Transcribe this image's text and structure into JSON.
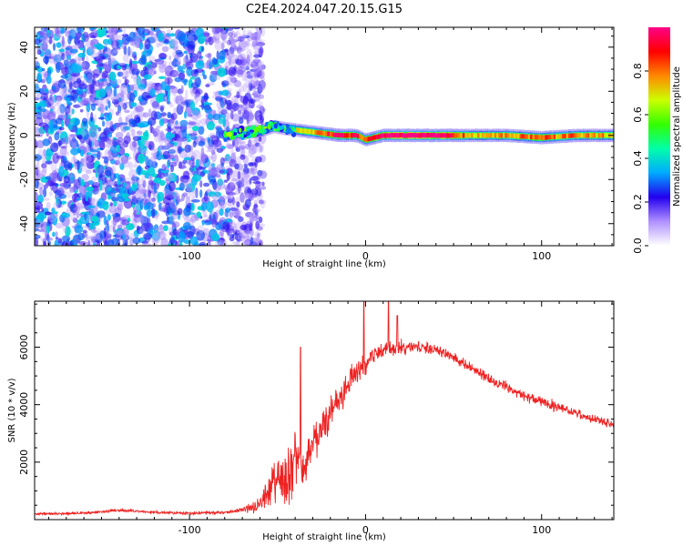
{
  "title": "C2E4.2024.047.20.15.G15",
  "colors": {
    "snr_line": "#ee2222",
    "axes": "#000000"
  },
  "chart_data": [
    {
      "type": "heatmap",
      "xlabel": "Height of straight line (km)",
      "ylabel": "Frequency (Hz)",
      "xlim": [
        -188,
        141
      ],
      "ylim": [
        -50,
        49
      ],
      "x_ticks": [
        -100,
        0,
        100
      ],
      "y_ticks": [
        -40,
        -20,
        0,
        20,
        40
      ],
      "grid": false,
      "ridge": [
        {
          "x": -80,
          "f": 0,
          "amp": 0.3
        },
        {
          "x": -70,
          "f": 1,
          "amp": 0.35
        },
        {
          "x": -60,
          "f": 2,
          "amp": 0.4
        },
        {
          "x": -52,
          "f": 4,
          "amp": 0.45
        },
        {
          "x": -45,
          "f": 3,
          "amp": 0.5
        },
        {
          "x": -35,
          "f": 2,
          "amp": 0.6
        },
        {
          "x": -25,
          "f": 1,
          "amp": 0.7
        },
        {
          "x": -15,
          "f": 0,
          "amp": 0.8
        },
        {
          "x": -5,
          "f": 0,
          "amp": 0.75
        },
        {
          "x": 0,
          "f": -2,
          "amp": 0.7
        },
        {
          "x": 10,
          "f": 0,
          "amp": 0.85
        },
        {
          "x": 25,
          "f": 0,
          "amp": 0.95
        },
        {
          "x": 45,
          "f": 0,
          "amp": 0.9
        },
        {
          "x": 60,
          "f": 0,
          "amp": 0.6
        },
        {
          "x": 80,
          "f": 0,
          "amp": 0.65
        },
        {
          "x": 100,
          "f": -1,
          "amp": 0.7
        },
        {
          "x": 120,
          "f": 0,
          "amp": 0.65
        },
        {
          "x": 141,
          "f": 0,
          "amp": 0.6
        }
      ],
      "colorbar": {
        "label": "Normalized spectral amplitude",
        "range": [
          0,
          1
        ],
        "ticks": [
          0.0,
          0.2,
          0.4,
          0.6,
          0.8
        ],
        "colors": [
          "#ffffff",
          "#b090ff",
          "#2200ee",
          "#00aaff",
          "#00ffaa",
          "#33ff00",
          "#ccff00",
          "#ff8800",
          "#ff0000",
          "#ff0088"
        ]
      }
    },
    {
      "type": "line",
      "xlabel": "Height of straight line (km)",
      "ylabel": "SNR (10 * v/v)",
      "xlim": [
        -188,
        141
      ],
      "ylim": [
        0,
        7600
      ],
      "x_ticks": [
        -100,
        0,
        100
      ],
      "y_ticks": [
        2000,
        4000,
        6000
      ],
      "grid": false,
      "series": [
        {
          "x": [
            -188,
            -170,
            -150,
            -140,
            -120,
            -100,
            -80,
            -70,
            -60,
            -50,
            -45,
            -40,
            -35,
            -30,
            -25,
            -20,
            -15,
            -10,
            -5,
            0,
            5,
            10,
            20,
            30,
            40,
            50,
            60,
            70,
            80,
            90,
            100,
            110,
            120,
            130,
            141
          ],
          "values": [
            200,
            220,
            260,
            330,
            250,
            230,
            250,
            320,
            500,
            1500,
            1300,
            2200,
            1800,
            2400,
            3000,
            3800,
            4100,
            4700,
            5100,
            5400,
            5800,
            5900,
            6000,
            6000,
            5900,
            5650,
            5300,
            4900,
            4600,
            4300,
            4100,
            3900,
            3700,
            3500,
            3300
          ],
          "noise": [
            60,
            70,
            80,
            100,
            80,
            80,
            90,
            150,
            400,
            1400,
            1600,
            1500,
            1500,
            1200,
            1100,
            1000,
            900,
            800,
            700,
            600,
            500,
            450,
            400,
            380,
            350,
            330,
            320,
            310,
            300,
            300,
            290,
            280,
            270,
            260,
            250
          ],
          "peaks": [
            {
              "x": -37,
              "y": 6000
            },
            {
              "x": -1,
              "y": 7600
            },
            {
              "x": 13,
              "y": 7600
            },
            {
              "x": 18,
              "y": 7100
            }
          ]
        }
      ]
    }
  ]
}
